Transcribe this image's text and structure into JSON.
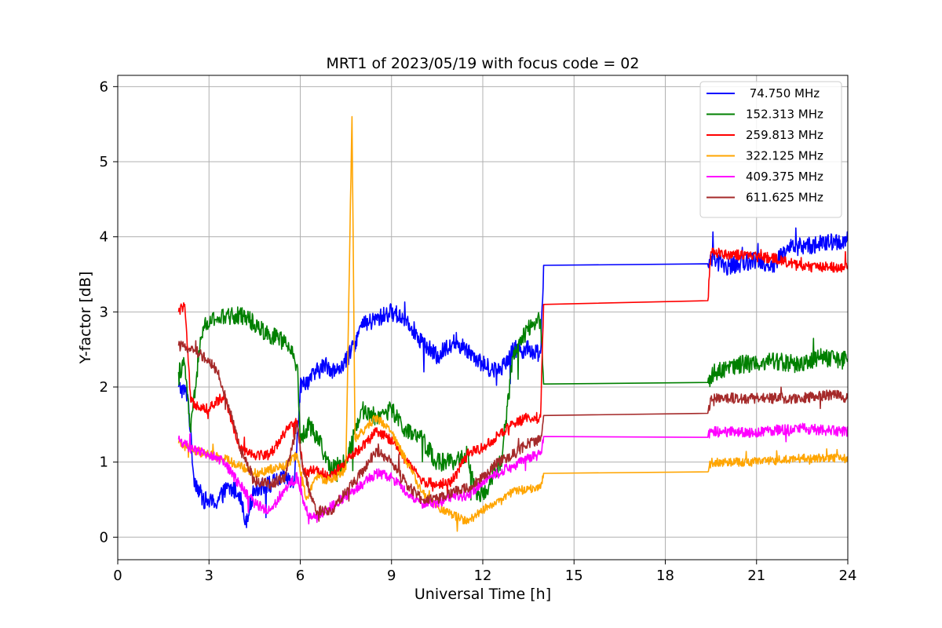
{
  "chart_data": {
    "type": "line",
    "title": "MRT1 of 2023/05/19 with focus code = 02",
    "xlabel": "Universal Time [h]",
    "ylabel": "Y-factor [dB]",
    "xlim": [
      0,
      24
    ],
    "ylim": [
      -0.3,
      6.15
    ],
    "xticks": [
      0,
      3,
      6,
      9,
      12,
      15,
      18,
      21,
      24
    ],
    "xtick_labels": [
      "0",
      "3",
      "6",
      "9",
      "12",
      "15",
      "18",
      "21",
      "24"
    ],
    "yticks": [
      0,
      1,
      2,
      3,
      4,
      5,
      6
    ],
    "ytick_labels": [
      "0",
      "1",
      "2",
      "3",
      "4",
      "5",
      "6"
    ],
    "grid": true,
    "legend_position": "top-right",
    "series": [
      {
        "name": " 74.750 MHz",
        "color": "#0000ff",
        "noise": 0.12,
        "points": [
          [
            2.0,
            2.0
          ],
          [
            2.3,
            1.9
          ],
          [
            2.5,
            0.8
          ],
          [
            2.8,
            0.5
          ],
          [
            3.2,
            0.45
          ],
          [
            3.6,
            0.65
          ],
          [
            4.0,
            0.6
          ],
          [
            4.2,
            0.2
          ],
          [
            4.5,
            0.65
          ],
          [
            5.0,
            0.7
          ],
          [
            5.5,
            0.8
          ],
          [
            5.8,
            0.7
          ],
          [
            6.0,
            2.0
          ],
          [
            6.3,
            2.1
          ],
          [
            6.8,
            2.3
          ],
          [
            7.2,
            2.2
          ],
          [
            7.6,
            2.4
          ],
          [
            8.0,
            2.8
          ],
          [
            8.5,
            2.9
          ],
          [
            9.0,
            3.0
          ],
          [
            9.5,
            2.9
          ],
          [
            10.0,
            2.6
          ],
          [
            10.5,
            2.4
          ],
          [
            11.0,
            2.6
          ],
          [
            11.5,
            2.5
          ],
          [
            12.0,
            2.3
          ],
          [
            12.5,
            2.2
          ],
          [
            13.0,
            2.5
          ],
          [
            13.5,
            2.5
          ],
          [
            13.9,
            2.45
          ],
          [
            14.0,
            3.62
          ],
          [
            19.4,
            3.64
          ],
          [
            19.6,
            3.7
          ],
          [
            20.0,
            3.6
          ],
          [
            21.0,
            3.7
          ],
          [
            21.5,
            3.6
          ],
          [
            22.0,
            3.85
          ],
          [
            23.0,
            3.9
          ],
          [
            24.0,
            3.95
          ]
        ],
        "gaps": [
          [
            14.0,
            19.4
          ]
        ]
      },
      {
        "name": "152.313 MHz",
        "color": "#008000",
        "noise": 0.12,
        "points": [
          [
            2.0,
            2.2
          ],
          [
            2.2,
            2.3
          ],
          [
            2.4,
            1.4
          ],
          [
            2.6,
            2.2
          ],
          [
            2.8,
            2.8
          ],
          [
            3.2,
            2.9
          ],
          [
            3.8,
            2.95
          ],
          [
            4.2,
            2.95
          ],
          [
            4.6,
            2.8
          ],
          [
            5.0,
            2.7
          ],
          [
            5.5,
            2.6
          ],
          [
            5.9,
            2.3
          ],
          [
            6.0,
            1.3
          ],
          [
            6.3,
            1.5
          ],
          [
            6.6,
            1.3
          ],
          [
            7.0,
            0.9
          ],
          [
            7.5,
            1.0
          ],
          [
            8.0,
            1.7
          ],
          [
            8.5,
            1.6
          ],
          [
            9.0,
            1.7
          ],
          [
            9.5,
            1.4
          ],
          [
            10.0,
            1.3
          ],
          [
            10.5,
            1.0
          ],
          [
            11.0,
            1.0
          ],
          [
            11.5,
            1.1
          ],
          [
            11.8,
            0.5
          ],
          [
            12.2,
            0.7
          ],
          [
            12.6,
            1.0
          ],
          [
            13.0,
            2.4
          ],
          [
            13.5,
            2.8
          ],
          [
            13.9,
            2.9
          ],
          [
            14.0,
            2.04
          ],
          [
            19.4,
            2.06
          ],
          [
            19.6,
            2.2
          ],
          [
            20.5,
            2.3
          ],
          [
            21.5,
            2.35
          ],
          [
            22.5,
            2.3
          ],
          [
            23.0,
            2.4
          ],
          [
            24.0,
            2.35
          ]
        ],
        "gaps": [
          [
            14.0,
            19.4
          ]
        ]
      },
      {
        "name": "259.813 MHz",
        "color": "#ff0000",
        "noise": 0.07,
        "points": [
          [
            2.0,
            3.0
          ],
          [
            2.2,
            3.1
          ],
          [
            2.4,
            1.8
          ],
          [
            3.0,
            1.7
          ],
          [
            3.5,
            1.9
          ],
          [
            4.0,
            1.2
          ],
          [
            4.5,
            1.1
          ],
          [
            5.0,
            1.1
          ],
          [
            5.5,
            1.4
          ],
          [
            5.9,
            1.55
          ],
          [
            6.1,
            0.85
          ],
          [
            6.5,
            0.9
          ],
          [
            7.0,
            0.8
          ],
          [
            7.5,
            1.0
          ],
          [
            8.0,
            1.2
          ],
          [
            8.5,
            1.4
          ],
          [
            9.0,
            1.3
          ],
          [
            9.5,
            1.0
          ],
          [
            10.0,
            0.75
          ],
          [
            10.5,
            0.7
          ],
          [
            11.0,
            0.75
          ],
          [
            11.5,
            1.1
          ],
          [
            12.0,
            1.2
          ],
          [
            12.5,
            1.35
          ],
          [
            13.0,
            1.5
          ],
          [
            13.5,
            1.6
          ],
          [
            13.9,
            1.6
          ],
          [
            14.0,
            3.1
          ],
          [
            19.4,
            3.15
          ],
          [
            19.5,
            3.8
          ],
          [
            20.5,
            3.75
          ],
          [
            21.5,
            3.72
          ],
          [
            22.5,
            3.6
          ],
          [
            23.5,
            3.6
          ],
          [
            24.0,
            3.6
          ]
        ],
        "gaps": [
          [
            14.0,
            19.4
          ]
        ]
      },
      {
        "name": "322.125 MHz",
        "color": "#ffa500",
        "noise": 0.06,
        "points": [
          [
            2.0,
            1.25
          ],
          [
            2.5,
            1.15
          ],
          [
            3.0,
            1.1
          ],
          [
            3.5,
            1.05
          ],
          [
            4.0,
            0.95
          ],
          [
            4.5,
            0.85
          ],
          [
            5.0,
            0.9
          ],
          [
            5.5,
            0.95
          ],
          [
            5.9,
            1.1
          ],
          [
            6.2,
            0.5
          ],
          [
            6.5,
            0.8
          ],
          [
            7.0,
            0.75
          ],
          [
            7.5,
            0.9
          ],
          [
            7.7,
            5.6
          ],
          [
            7.8,
            1.3
          ],
          [
            8.5,
            1.6
          ],
          [
            9.0,
            1.4
          ],
          [
            9.5,
            1.0
          ],
          [
            10.0,
            0.6
          ],
          [
            10.5,
            0.4
          ],
          [
            11.0,
            0.3
          ],
          [
            11.5,
            0.2
          ],
          [
            11.8,
            0.3
          ],
          [
            12.5,
            0.5
          ],
          [
            13.0,
            0.6
          ],
          [
            13.5,
            0.65
          ],
          [
            13.9,
            0.65
          ],
          [
            14.0,
            0.85
          ],
          [
            19.4,
            0.87
          ],
          [
            19.5,
            1.0
          ],
          [
            21.0,
            1.0
          ],
          [
            22.5,
            1.05
          ],
          [
            24.0,
            1.05
          ]
        ],
        "gaps": [
          [
            14.0,
            19.4
          ]
        ]
      },
      {
        "name": "409.375 MHz",
        "color": "#ff00ff",
        "noise": 0.07,
        "points": [
          [
            2.0,
            1.3
          ],
          [
            2.5,
            1.15
          ],
          [
            3.0,
            1.1
          ],
          [
            3.5,
            1.0
          ],
          [
            4.0,
            0.7
          ],
          [
            4.5,
            0.45
          ],
          [
            5.0,
            0.35
          ],
          [
            5.5,
            0.65
          ],
          [
            5.9,
            0.8
          ],
          [
            6.2,
            0.35
          ],
          [
            6.5,
            0.25
          ],
          [
            7.0,
            0.4
          ],
          [
            7.5,
            0.55
          ],
          [
            8.0,
            0.7
          ],
          [
            8.5,
            0.85
          ],
          [
            9.0,
            0.8
          ],
          [
            9.5,
            0.6
          ],
          [
            10.0,
            0.45
          ],
          [
            10.5,
            0.45
          ],
          [
            11.0,
            0.55
          ],
          [
            11.5,
            0.55
          ],
          [
            12.0,
            0.75
          ],
          [
            12.5,
            0.85
          ],
          [
            13.0,
            0.95
          ],
          [
            13.5,
            1.05
          ],
          [
            13.9,
            1.1
          ],
          [
            14.0,
            1.34
          ],
          [
            19.4,
            1.33
          ],
          [
            19.5,
            1.4
          ],
          [
            21.0,
            1.4
          ],
          [
            22.5,
            1.45
          ],
          [
            24.0,
            1.4
          ]
        ],
        "gaps": [
          [
            14.0,
            19.4
          ]
        ]
      },
      {
        "name": "611.625 MHz",
        "color": "#a52a2a",
        "noise": 0.07,
        "points": [
          [
            2.0,
            2.55
          ],
          [
            2.5,
            2.5
          ],
          [
            3.0,
            2.35
          ],
          [
            3.3,
            2.2
          ],
          [
            3.6,
            1.8
          ],
          [
            4.0,
            1.2
          ],
          [
            4.5,
            0.75
          ],
          [
            5.0,
            0.7
          ],
          [
            5.5,
            0.8
          ],
          [
            5.9,
            1.5
          ],
          [
            6.1,
            0.9
          ],
          [
            6.5,
            0.35
          ],
          [
            7.0,
            0.35
          ],
          [
            7.5,
            0.6
          ],
          [
            8.0,
            0.85
          ],
          [
            8.5,
            1.15
          ],
          [
            9.0,
            1.0
          ],
          [
            9.5,
            0.7
          ],
          [
            10.0,
            0.5
          ],
          [
            10.5,
            0.5
          ],
          [
            11.0,
            0.6
          ],
          [
            11.5,
            0.65
          ],
          [
            12.0,
            0.8
          ],
          [
            12.5,
            1.0
          ],
          [
            13.0,
            1.1
          ],
          [
            13.5,
            1.25
          ],
          [
            13.9,
            1.3
          ],
          [
            14.0,
            1.62
          ],
          [
            19.4,
            1.65
          ],
          [
            19.5,
            1.85
          ],
          [
            21.0,
            1.85
          ],
          [
            22.5,
            1.85
          ],
          [
            23.5,
            1.9
          ],
          [
            24.0,
            1.85
          ]
        ],
        "gaps": [
          [
            14.0,
            19.4
          ]
        ]
      }
    ]
  }
}
